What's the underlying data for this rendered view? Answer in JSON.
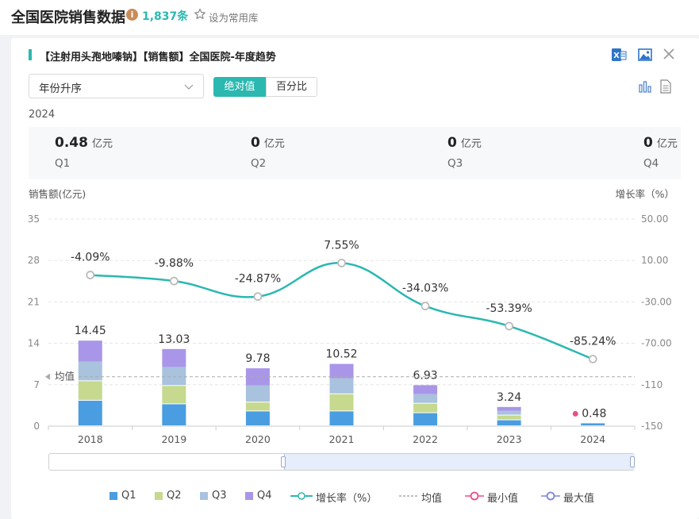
{
  "header": {
    "title": "全国医院销售数据",
    "info_icon": "i",
    "count": "1,837条",
    "favorite_label": "设为常用库"
  },
  "card": {
    "title": "【注射用头孢地嗪钠】【销售额】全国医院-年度趋势",
    "icons": [
      "excel-export-icon",
      "image-export-icon",
      "close-icon",
      "bar-chart-icon",
      "table-view-icon"
    ],
    "sort_select": "年份升序",
    "toggle": {
      "absolute": "绝对值",
      "percent": "百分比",
      "active": "absolute"
    },
    "year": "2024",
    "stats": [
      {
        "value": "0.48",
        "unit": "亿元",
        "label": "Q1"
      },
      {
        "value": "0",
        "unit": "亿元",
        "label": "Q2"
      },
      {
        "value": "0",
        "unit": "亿元",
        "label": "Q3"
      },
      {
        "value": "0",
        "unit": "亿元",
        "label": "Q4"
      }
    ]
  },
  "colors": {
    "accent": "#2bb8b0",
    "q1": "#4a9de0",
    "q2": "#c6d98f",
    "q3": "#a9c2de",
    "q4": "#a996e8",
    "growth_line": "#2bb8b0",
    "min_marker": "#e94f8a",
    "max_marker": "#7b86d9"
  },
  "chart_data": {
    "type": "bar",
    "stacked": true,
    "categories": [
      "2018",
      "2019",
      "2020",
      "2021",
      "2022",
      "2023",
      "2024"
    ],
    "series": [
      {
        "name": "Q1",
        "values": [
          4.3,
          3.7,
          2.5,
          2.5,
          2.2,
          1.0,
          0.48
        ]
      },
      {
        "name": "Q2",
        "values": [
          3.3,
          3.1,
          1.5,
          2.9,
          1.6,
          0.8,
          0
        ]
      },
      {
        "name": "Q3",
        "values": [
          3.3,
          3.2,
          2.9,
          2.7,
          1.6,
          0.8,
          0
        ]
      },
      {
        "name": "Q4",
        "values": [
          3.55,
          3.03,
          2.88,
          2.42,
          1.53,
          0.64,
          0
        ]
      }
    ],
    "totals": [
      14.45,
      13.03,
      9.78,
      10.52,
      6.93,
      3.24,
      0.48
    ],
    "total_labels": [
      "14.45",
      "13.03",
      "9.78",
      "10.52",
      "6.93",
      "3.24",
      "0.48"
    ],
    "growth": {
      "name": "增长率（%）",
      "values": [
        -4.09,
        -9.88,
        -24.87,
        7.55,
        -34.03,
        -53.39,
        -85.24
      ],
      "labels": [
        "-4.09%",
        "-9.88%",
        "-24.87%",
        "7.55%",
        "-34.03%",
        "-53.39%",
        "-85.24%"
      ]
    },
    "average": {
      "name": "均值",
      "value": 8.35
    },
    "ylabel": "销售额(亿元)",
    "y2label": "增长率（%）",
    "ylim": [
      0,
      35
    ],
    "yticks": [
      "0",
      "7",
      "14",
      "21",
      "28",
      "35"
    ],
    "y2lim": [
      -150,
      50
    ],
    "y2ticks": [
      "-150",
      "-110",
      "-70.00",
      "-30.00",
      "10.00",
      "50.00"
    ],
    "grid": true,
    "legend": {
      "position": "bottom",
      "items": [
        "Q1",
        "Q2",
        "Q3",
        "Q4",
        "增长率（%）",
        "均值",
        "最小值",
        "最大值"
      ]
    },
    "min_point": {
      "category": "2024",
      "value": 0.48
    }
  }
}
